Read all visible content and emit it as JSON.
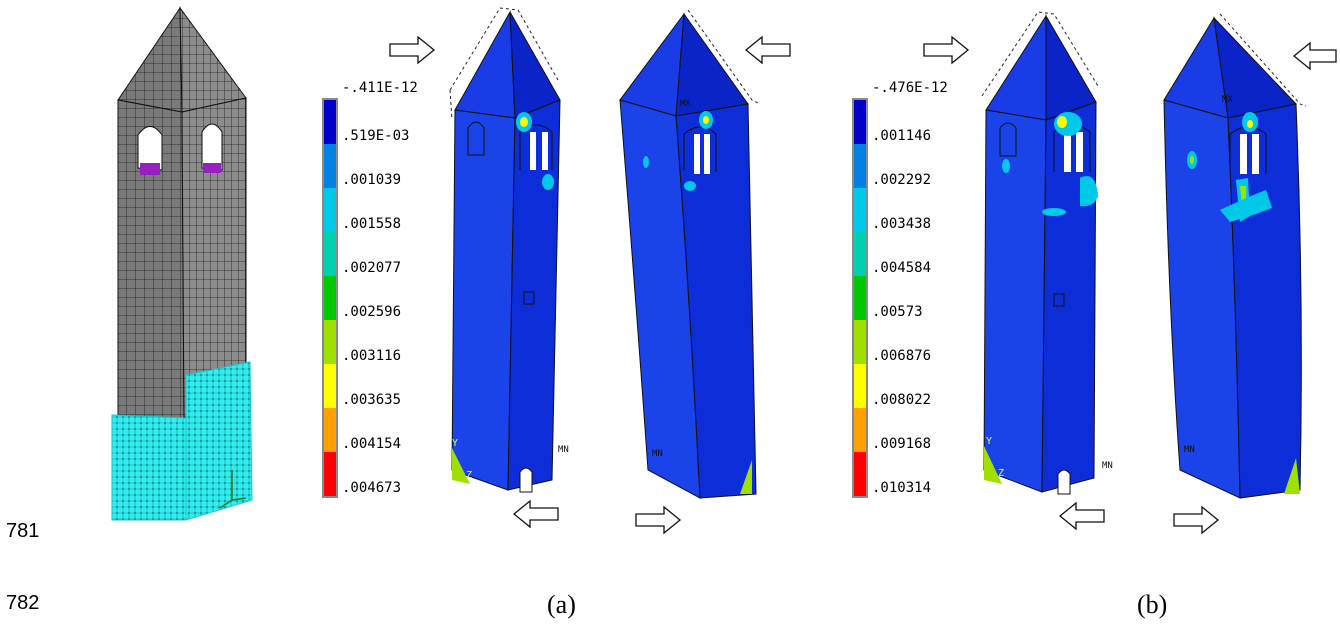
{
  "line_numbers": [
    "781",
    "782"
  ],
  "captions": {
    "a": "(a)",
    "b": "(b)"
  },
  "colorbars": {
    "a": {
      "top_label": "-.411E-12",
      "labels": [
        ".519E-03",
        ".001039",
        ".001558",
        ".002077",
        ".002596",
        ".003116",
        ".003635",
        ".004154",
        ".004673"
      ]
    },
    "b": {
      "top_label": "-.476E-12",
      "labels": [
        ".001146",
        ".002292",
        ".003438",
        ".004584",
        ".00573",
        ".006876",
        ".008022",
        ".009168",
        ".010314"
      ]
    }
  },
  "colormap": [
    "#0000c8",
    "#0080e0",
    "#00c8e8",
    "#00d0b0",
    "#00c800",
    "#a0e000",
    "#ffff00",
    "#ffa000",
    "#ff0000"
  ],
  "fea_markers": {
    "mx": "MX",
    "mn": "MN",
    "y": "Y",
    "z": "Z"
  }
}
